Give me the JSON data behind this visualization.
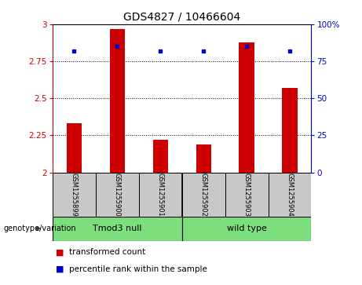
{
  "title": "GDS4827 / 10466604",
  "samples": [
    "GSM1255899",
    "GSM1255900",
    "GSM1255901",
    "GSM1255902",
    "GSM1255903",
    "GSM1255904"
  ],
  "transformed_counts": [
    2.33,
    2.97,
    2.22,
    2.19,
    2.88,
    2.57
  ],
  "percentile_ranks": [
    82,
    85,
    82,
    82,
    85,
    82
  ],
  "ylim_left": [
    2.0,
    3.0
  ],
  "ylim_right": [
    0,
    100
  ],
  "yticks_left": [
    2.0,
    2.25,
    2.5,
    2.75,
    3.0
  ],
  "yticks_right": [
    0,
    25,
    50,
    75,
    100
  ],
  "bar_color": "#cc0000",
  "dot_color": "#0000cc",
  "bar_bottom": 2.0,
  "group1_label": "Tmod3 null",
  "group2_label": "wild type",
  "group_label_prefix": "genotype/variation",
  "legend_bar_label": "transformed count",
  "legend_dot_label": "percentile rank within the sample",
  "group_bg_color": "#7cde7c",
  "sample_bg_color": "#c8c8c8",
  "left_tick_color": "#cc0000",
  "right_tick_color": "#0000cc",
  "grid_dotted_at": [
    2.25,
    2.5,
    2.75
  ],
  "bar_width": 0.35,
  "title_fontsize": 10,
  "tick_fontsize": 7.5,
  "sample_fontsize": 6,
  "group_fontsize": 8,
  "legend_fontsize": 7.5
}
